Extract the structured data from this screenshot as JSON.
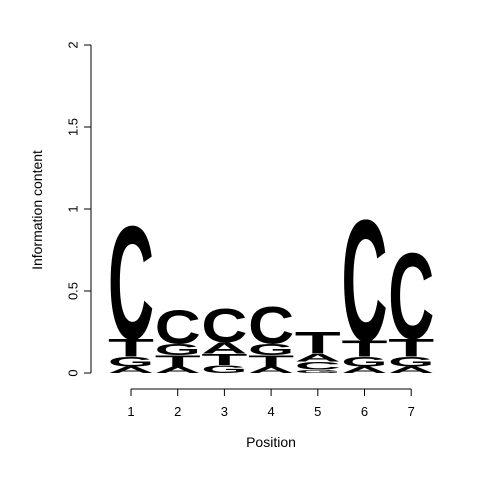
{
  "chart_data": {
    "type": "sequence-logo",
    "title": "",
    "xlabel": "Position",
    "ylabel": "Information content",
    "ylim": [
      0,
      2
    ],
    "y_ticks": [
      "0",
      "0.5",
      "1",
      "1.5",
      "2"
    ],
    "y_tick_values": [
      0,
      0.5,
      1,
      1.5,
      2
    ],
    "positions": [
      "1",
      "2",
      "3",
      "4",
      "5",
      "6",
      "7"
    ],
    "letter_colors": {
      "A": "#00ee00",
      "C": "#0000ee",
      "G": "#ffa500",
      "T": "#ff0000"
    },
    "stacks": [
      [
        {
          "letter": "A",
          "height": 0.04
        },
        {
          "letter": "G",
          "height": 0.06
        },
        {
          "letter": "T",
          "height": 0.11
        },
        {
          "letter": "C",
          "height": 0.71
        }
      ],
      [
        {
          "letter": "A",
          "height": 0.04
        },
        {
          "letter": "T",
          "height": 0.07
        },
        {
          "letter": "G",
          "height": 0.07
        },
        {
          "letter": "C",
          "height": 0.21
        }
      ],
      [
        {
          "letter": "G",
          "height": 0.05
        },
        {
          "letter": "T",
          "height": 0.07
        },
        {
          "letter": "A",
          "height": 0.07
        },
        {
          "letter": "C",
          "height": 0.21
        }
      ],
      [
        {
          "letter": "A",
          "height": 0.04
        },
        {
          "letter": "T",
          "height": 0.07
        },
        {
          "letter": "G",
          "height": 0.07
        },
        {
          "letter": "C",
          "height": 0.23
        }
      ],
      [
        {
          "letter": "G",
          "height": 0.02
        },
        {
          "letter": "C",
          "height": 0.05
        },
        {
          "letter": "A",
          "height": 0.05
        },
        {
          "letter": "T",
          "height": 0.14
        }
      ],
      [
        {
          "letter": "A",
          "height": 0.04
        },
        {
          "letter": "G",
          "height": 0.06
        },
        {
          "letter": "T",
          "height": 0.1
        },
        {
          "letter": "C",
          "height": 0.76
        }
      ],
      [
        {
          "letter": "A",
          "height": 0.04
        },
        {
          "letter": "G",
          "height": 0.06
        },
        {
          "letter": "T",
          "height": 0.11
        },
        {
          "letter": "C",
          "height": 0.54
        }
      ]
    ]
  }
}
